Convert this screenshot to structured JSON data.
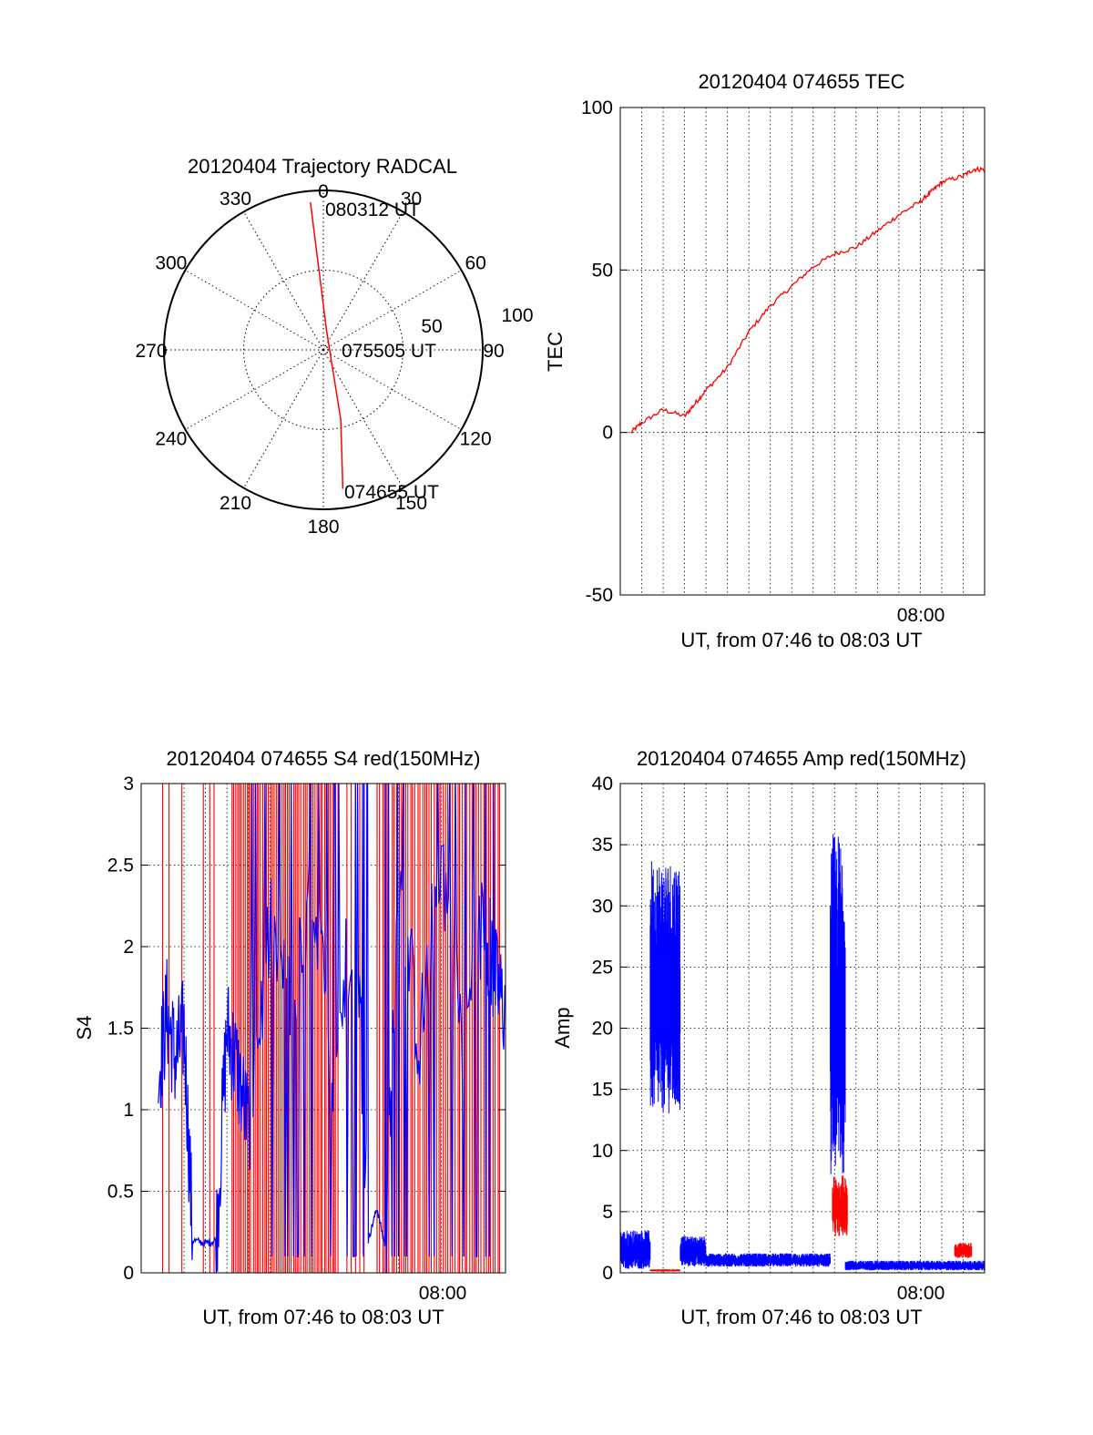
{
  "colors": {
    "red": "#ff0000",
    "blue": "#0000ff",
    "axis": "#000000",
    "grid": "#000000"
  },
  "chart_data": [
    {
      "type": "polar",
      "title": "20120404 Trajectory RADCAL",
      "angle_ticks": [
        "0",
        "30",
        "60",
        "90",
        "120",
        "150",
        "180",
        "210",
        "240",
        "270",
        "300",
        "330"
      ],
      "radial_ticks": [
        "50",
        "100"
      ],
      "rlim": [
        0,
        100
      ],
      "grid": true,
      "series": [
        {
          "color": "red",
          "points": [
            {
              "az": 355,
              "r": 93
            },
            {
              "az": 10,
              "r": 12
            },
            {
              "az": 166,
              "r": 45
            },
            {
              "az": 172,
              "r": 88
            }
          ]
        }
      ],
      "annotations": [
        "080312 UT",
        "075505 UT",
        "074655 UT"
      ]
    },
    {
      "type": "line",
      "title": "20120404 074655 TEC",
      "xlabel": "UT, from 07:46 to 08:03 UT",
      "ylabel": "TEC",
      "x_ticks": [
        "08:00"
      ],
      "y_ticks": [
        "100",
        "50",
        "0",
        "-50"
      ],
      "ylim": [
        -50,
        100
      ],
      "grid": true,
      "series": [
        {
          "color": "red",
          "x_min": [
            0.5,
            1,
            2,
            3,
            3.5,
            4,
            5,
            6,
            7,
            8,
            9,
            10,
            11,
            12,
            13,
            14,
            14.5,
            15,
            16,
            16.5,
            17
          ],
          "y": [
            0,
            3,
            7,
            5,
            9,
            13,
            20,
            31,
            39,
            45,
            51,
            55,
            57,
            62,
            67,
            71,
            74,
            77,
            79,
            81,
            81
          ]
        }
      ]
    },
    {
      "type": "line",
      "title": "20120404 074655 S4 red(150MHz)",
      "xlabel": "UT, from 07:46 to 08:03 UT",
      "ylabel": "S4",
      "x_ticks": [
        "08:00"
      ],
      "y_ticks": [
        "3",
        "2.5",
        "2",
        "1.5",
        "1",
        "0.5",
        "0"
      ],
      "ylim": [
        0,
        3
      ],
      "grid": true,
      "series": [
        {
          "color": "red",
          "pattern": "dense spikes 0 to 3 across most of range"
        },
        {
          "color": "blue",
          "x_min": [
            0.8,
            1.2,
            1.6,
            2.0,
            2.4,
            3.0,
            3.5,
            4.0,
            4.4,
            5.0,
            6.0,
            7.0,
            8.0,
            9.0,
            10.0,
            10.6,
            11.0,
            11.4,
            12,
            13,
            14,
            15,
            16,
            16.5,
            17
          ],
          "y": [
            1.2,
            1.6,
            1.3,
            1.5,
            0.2,
            0.18,
            0.2,
            1.5,
            1.3,
            0.9,
            2.1,
            1.6,
            2.3,
            1.2,
            2.4,
            0.2,
            0.4,
            0.15,
            2.4,
            1.4,
            2.6,
            1.4,
            2.2,
            1.8,
            1.6
          ]
        }
      ]
    },
    {
      "type": "line",
      "title": "20120404 074655 Amp red(150MHz)",
      "xlabel": "UT, from 07:46 to 08:03 UT",
      "ylabel": "Amp",
      "x_ticks": [
        "08:00"
      ],
      "y_ticks": [
        "40",
        "35",
        "30",
        "25",
        "20",
        "15",
        "10",
        "5",
        "0"
      ],
      "ylim": [
        0,
        40
      ],
      "grid": true,
      "series": [
        {
          "color": "blue",
          "bursts": [
            {
              "x0": 0.0,
              "x1": 1.4,
              "lo": 0.3,
              "hi": 3.5
            },
            {
              "x0": 1.4,
              "x1": 2.8,
              "lo": 13,
              "hi": 34
            },
            {
              "x0": 2.8,
              "x1": 4.0,
              "lo": 0.5,
              "hi": 3
            },
            {
              "x0": 4.0,
              "x1": 9.8,
              "lo": 0.5,
              "hi": 1.6
            },
            {
              "x0": 9.8,
              "x1": 10.5,
              "lo": 8,
              "hi": 36
            },
            {
              "x0": 10.5,
              "x1": 17.0,
              "lo": 0.2,
              "hi": 1.0
            }
          ]
        },
        {
          "color": "red",
          "bursts": [
            {
              "x0": 1.4,
              "x1": 2.8,
              "lo": 0.1,
              "hi": 0.3
            },
            {
              "x0": 9.9,
              "x1": 10.6,
              "lo": 3,
              "hi": 8
            },
            {
              "x0": 15.6,
              "x1": 16.4,
              "lo": 1.2,
              "hi": 2.5
            }
          ]
        }
      ]
    }
  ]
}
